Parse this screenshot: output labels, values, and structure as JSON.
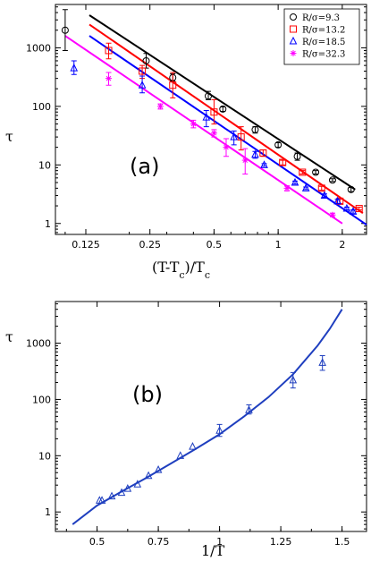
{
  "chart_data": [
    {
      "type": "scatter",
      "panel_label": "(a)",
      "xlabel": "(T-T_c)/T_c",
      "ylabel": "τ",
      "xscale": "log",
      "yscale": "log",
      "xlim": [
        0.09,
        2.6
      ],
      "ylim": [
        0.65,
        5500
      ],
      "xticks": [
        0.125,
        0.25,
        0.5,
        1,
        2
      ],
      "xtick_labels": [
        "0.125",
        "0.25",
        "0.5",
        "1",
        "2"
      ],
      "yticks": [
        1,
        10,
        100,
        1000
      ],
      "ytick_labels": [
        "1",
        "10",
        "100",
        "1000"
      ],
      "grid": false,
      "legend_position": "top-right",
      "series": [
        {
          "name": "R/σ=9.3",
          "color": "#000000",
          "marker": "circle",
          "fit_line": [
            [
              0.13,
              3600
            ],
            [
              2.3,
              3.8
            ]
          ],
          "points": [
            {
              "x": 0.1,
              "y": 2000,
              "err": [
                900,
                4500
              ]
            },
            {
              "x": 0.24,
              "y": 600,
              "err": [
                450,
                800
              ]
            },
            {
              "x": 0.32,
              "y": 310,
              "err": [
                270,
                360
              ]
            },
            {
              "x": 0.47,
              "y": 150,
              "err": [
                130,
                180
              ]
            },
            {
              "x": 0.55,
              "y": 90,
              "err": [
                82,
                98
              ]
            },
            {
              "x": 0.78,
              "y": 40,
              "err": [
                35,
                45
              ]
            },
            {
              "x": 1.0,
              "y": 22,
              "err": [
                20,
                24
              ]
            },
            {
              "x": 1.23,
              "y": 14,
              "err": [
                12,
                16
              ]
            },
            {
              "x": 1.5,
              "y": 7.5,
              "err": [
                7,
                8
              ]
            },
            {
              "x": 1.8,
              "y": 5.5,
              "err": [
                5.2,
                5.8
              ]
            },
            {
              "x": 2.2,
              "y": 3.8,
              "err": [
                3.5,
                4.1
              ]
            }
          ]
        },
        {
          "name": "R/σ=13.2",
          "color": "#ff0000",
          "marker": "square",
          "fit_line": [
            [
              0.13,
              2500
            ],
            [
              2.5,
              1.5
            ]
          ],
          "points": [
            {
              "x": 0.16,
              "y": 900,
              "err": [
                650,
                1200
              ]
            },
            {
              "x": 0.23,
              "y": 400,
              "err": [
                300,
                500
              ]
            },
            {
              "x": 0.32,
              "y": 230,
              "err": [
                140,
                380
              ]
            },
            {
              "x": 0.5,
              "y": 80,
              "err": [
                50,
                130
              ]
            },
            {
              "x": 0.67,
              "y": 30,
              "err": [
                18,
                45
              ]
            },
            {
              "x": 0.85,
              "y": 16,
              "err": [
                14,
                18
              ]
            },
            {
              "x": 1.05,
              "y": 11,
              "err": [
                10,
                12
              ]
            },
            {
              "x": 1.3,
              "y": 7.5,
              "err": [
                7,
                8
              ]
            },
            {
              "x": 1.6,
              "y": 4,
              "err": [
                3.7,
                4.3
              ]
            },
            {
              "x": 1.95,
              "y": 2.4,
              "err": [
                2.2,
                2.6
              ]
            },
            {
              "x": 2.4,
              "y": 1.8,
              "err": [
                1.7,
                1.9
              ]
            }
          ]
        },
        {
          "name": "R/σ=18.5",
          "color": "#0000ff",
          "marker": "triangle",
          "fit_line": [
            [
              0.13,
              1600
            ],
            [
              2.6,
              0.95
            ]
          ],
          "points": [
            {
              "x": 0.11,
              "y": 450,
              "err": [
                350,
                600
              ]
            },
            {
              "x": 0.23,
              "y": 230,
              "err": [
                170,
                330
              ]
            },
            {
              "x": 0.46,
              "y": 65,
              "err": [
                45,
                85
              ]
            },
            {
              "x": 0.62,
              "y": 30,
              "err": [
                22,
                38
              ]
            },
            {
              "x": 0.78,
              "y": 15,
              "err": [
                13,
                17
              ]
            },
            {
              "x": 0.86,
              "y": 10,
              "err": [
                9.5,
                10.5
              ]
            },
            {
              "x": 1.2,
              "y": 5,
              "err": [
                4.7,
                5.3
              ]
            },
            {
              "x": 1.35,
              "y": 4,
              "err": [
                3.8,
                4.2
              ]
            },
            {
              "x": 1.65,
              "y": 3,
              "err": [
                2.8,
                3.2
              ]
            },
            {
              "x": 1.9,
              "y": 2.4,
              "err": [
                2.2,
                2.6
              ]
            },
            {
              "x": 2.1,
              "y": 1.8,
              "err": [
                1.7,
                1.9
              ]
            },
            {
              "x": 2.25,
              "y": 1.6,
              "err": [
                1.5,
                1.7
              ]
            }
          ]
        },
        {
          "name": "R/σ=32.3",
          "color": "#ff00ff",
          "marker": "star",
          "fit_line": [
            [
              0.1,
              1600
            ],
            [
              2.0,
              1.0
            ]
          ],
          "points": [
            {
              "x": 0.16,
              "y": 300,
              "err": [
                230,
                380
              ]
            },
            {
              "x": 0.28,
              "y": 100,
              "err": [
                90,
                110
              ]
            },
            {
              "x": 0.4,
              "y": 50,
              "err": [
                43,
                58
              ]
            },
            {
              "x": 0.5,
              "y": 35,
              "err": [
                30,
                40
              ]
            },
            {
              "x": 0.57,
              "y": 20,
              "err": [
                14,
                28
              ]
            },
            {
              "x": 0.7,
              "y": 12,
              "err": [
                7,
                19
              ]
            },
            {
              "x": 1.1,
              "y": 4,
              "err": [
                3.6,
                4.4
              ]
            },
            {
              "x": 1.8,
              "y": 1.4,
              "err": [
                1.3,
                1.5
              ]
            }
          ]
        }
      ]
    },
    {
      "type": "scatter",
      "panel_label": "(b)",
      "xlabel": "1/T",
      "ylabel": "τ",
      "xscale": "linear",
      "yscale": "log",
      "xlim": [
        0.33,
        1.6
      ],
      "ylim": [
        0.45,
        5500
      ],
      "xticks": [
        0.5,
        0.75,
        1,
        1.25,
        1.5
      ],
      "xtick_labels": [
        "0.5",
        "0.75",
        "1",
        "1.25",
        "1.5"
      ],
      "yticks": [
        1,
        10,
        100,
        1000
      ],
      "ytick_labels": [
        "1",
        "10",
        "100",
        "1000"
      ],
      "grid": false,
      "series": [
        {
          "color": "#1f3fbf",
          "marker": "triangle",
          "fit_curve": [
            [
              0.4,
              0.6
            ],
            [
              0.5,
              1.3
            ],
            [
              0.6,
              2.3
            ],
            [
              0.7,
              4.0
            ],
            [
              0.8,
              7.2
            ],
            [
              0.9,
              13
            ],
            [
              1.0,
              24
            ],
            [
              1.1,
              50
            ],
            [
              1.2,
              110
            ],
            [
              1.3,
              280
            ],
            [
              1.4,
              900
            ],
            [
              1.45,
              1800
            ],
            [
              1.5,
              4000
            ]
          ],
          "points": [
            {
              "x": 0.51,
              "y": 1.6
            },
            {
              "x": 0.52,
              "y": 1.6
            },
            {
              "x": 0.56,
              "y": 1.9
            },
            {
              "x": 0.6,
              "y": 2.2
            },
            {
              "x": 0.625,
              "y": 2.6
            },
            {
              "x": 0.665,
              "y": 3.1
            },
            {
              "x": 0.71,
              "y": 4.4
            },
            {
              "x": 0.75,
              "y": 5.6
            },
            {
              "x": 0.84,
              "y": 10
            },
            {
              "x": 0.89,
              "y": 14.5
            },
            {
              "x": 1.0,
              "y": 28,
              "err": [
                22,
                36
              ]
            },
            {
              "x": 1.12,
              "y": 65,
              "err": [
                55,
                80
              ]
            },
            {
              "x": 1.3,
              "y": 220,
              "err": [
                160,
                300
              ]
            },
            {
              "x": 1.42,
              "y": 450,
              "err": [
                330,
                600
              ]
            }
          ]
        }
      ]
    }
  ]
}
